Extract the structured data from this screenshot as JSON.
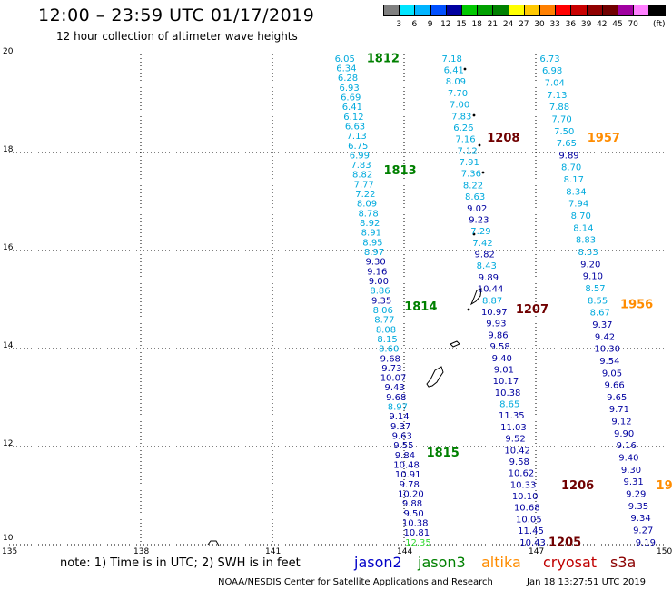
{
  "title": "12:00 – 23:59 UTC 01/17/2019",
  "subtitle": "12 hour collection of altimeter wave heights",
  "colorbar": {
    "colors": [
      "#808080",
      "#00e5ff",
      "#00b4ff",
      "#0050ff",
      "#0000a0",
      "#00c800",
      "#00a000",
      "#008000",
      "#ffff00",
      "#ffc800",
      "#ff8000",
      "#ff0000",
      "#c80000",
      "#900000",
      "#700000",
      "#a000a0",
      "#ff80ff",
      "#000000"
    ],
    "labels": [
      "3",
      "6",
      "9",
      "12",
      "15",
      "18",
      "21",
      "24",
      "27",
      "30",
      "33",
      "36",
      "39",
      "42",
      "45",
      "70"
    ],
    "unit": "(ft)"
  },
  "axes": {
    "x_labels": [
      "135",
      "138",
      "141",
      "144",
      "147",
      "150"
    ],
    "y_labels": [
      "20",
      "18",
      "16",
      "14",
      "12",
      "10"
    ]
  },
  "tracks": [
    {
      "id": "t1812-1815",
      "color_labels": "#008000",
      "labels": [
        {
          "text": "1812",
          "lat": 19.92
        },
        {
          "text": "1813",
          "lat": 17.63
        },
        {
          "text": "1814",
          "lat": 14.85
        },
        {
          "text": "1815",
          "lat": 11.87
        }
      ],
      "start": [
        142.65,
        19.92
      ],
      "end": [
        144.32,
        10.05
      ],
      "values": [
        "6.05",
        "6.34",
        "6.28",
        "6.93",
        "6.69",
        "6.41",
        "6.12",
        "6.63",
        "7.13",
        "6.75",
        "6.99",
        "7.83",
        "8.82",
        "7.77",
        "7.22",
        "8.09",
        "8.78",
        "8.92",
        "8.91",
        "8.95",
        "8.97",
        "9.30",
        "9.16",
        "9.00",
        "8.86",
        "9.35",
        "8.06",
        "8.77",
        "8.08",
        "8.15",
        "8.60",
        "9.68",
        "9.73",
        "10.07",
        "9.43",
        "9.68",
        "8.97",
        "9.14",
        "9.37",
        "9.63",
        "9.55",
        "9.84",
        "10.48",
        "10.91",
        "9.78",
        "10.20",
        "9.88",
        "9.50",
        "10.38",
        "10.81",
        "12.35"
      ]
    },
    {
      "id": "t1208-1207",
      "color_labels": "#700000",
      "labels": [
        {
          "text": "1208",
          "lat": 18.3
        },
        {
          "text": "1207",
          "lat": 14.8
        }
      ],
      "start": [
        145.09,
        19.92
      ],
      "end": [
        146.93,
        10.05
      ],
      "values": [
        "7.18",
        "6.41",
        "8.09",
        "7.70",
        "7.00",
        "7.83",
        "6.26",
        "7.16",
        "7.12",
        "7.91",
        "7.36",
        "8.22",
        "8.63",
        "9.02",
        "9.23",
        "7.29",
        "7.42",
        "9.82",
        "8.43",
        "9.89",
        "10.44",
        "8.87",
        "10.97",
        "9.93",
        "9.86",
        "9.58",
        "9.40",
        "9.01",
        "10.17",
        "10.38",
        "8.65",
        "11.35",
        "11.03",
        "9.52",
        "10.42",
        "9.58",
        "10.62",
        "10.33",
        "10.10",
        "10.68",
        "10.05",
        "11.45",
        "10.43"
      ]
    },
    {
      "id": "t1957-1956",
      "color_labels": "#ff8c00",
      "labels": [
        {
          "text": "1957",
          "lat": 18.3
        },
        {
          "text": "1956",
          "lat": 14.9
        },
        {
          "text": "19",
          "lat": 11.2
        }
      ],
      "start": [
        147.32,
        19.92
      ],
      "end": [
        149.5,
        10.05
      ],
      "values": [
        "6.73",
        "6.98",
        "7.04",
        "7.13",
        "7.88",
        "7.70",
        "7.50",
        "7.65",
        "9.89",
        "8.70",
        "8.17",
        "8.34",
        "7.94",
        "8.70",
        "8.14",
        "8.83",
        "8.53",
        "9.20",
        "9.10",
        "8.57",
        "8.55",
        "8.67",
        "9.37",
        "9.42",
        "10.30",
        "9.54",
        "9.05",
        "9.66",
        "9.65",
        "9.71",
        "9.12",
        "9.90",
        "9.16",
        "9.40",
        "9.30",
        "9.31",
        "9.29",
        "9.35",
        "9.34",
        "9.27",
        "9.19"
      ]
    }
  ],
  "pass_1206": {
    "text": "1206",
    "lat": 11.2
  },
  "pass_1205": {
    "text": "1205",
    "lat": 10.05
  },
  "note": "note:  1) Time is in UTC;  2) SWH is in feet",
  "satellites": [
    {
      "name": "jason2",
      "color": "#0000c8"
    },
    {
      "name": "jason3",
      "color": "#008000"
    },
    {
      "name": "altika",
      "color": "#ff8c00"
    },
    {
      "name": "cryosat",
      "color": "#c00000"
    },
    {
      "name": "s3a",
      "color": "#8b0000"
    }
  ],
  "credit": "NOAA/NESDIS Center for Satellite Applications and Research",
  "timestamp": "Jan 18 13:27:51 UTC 2019"
}
